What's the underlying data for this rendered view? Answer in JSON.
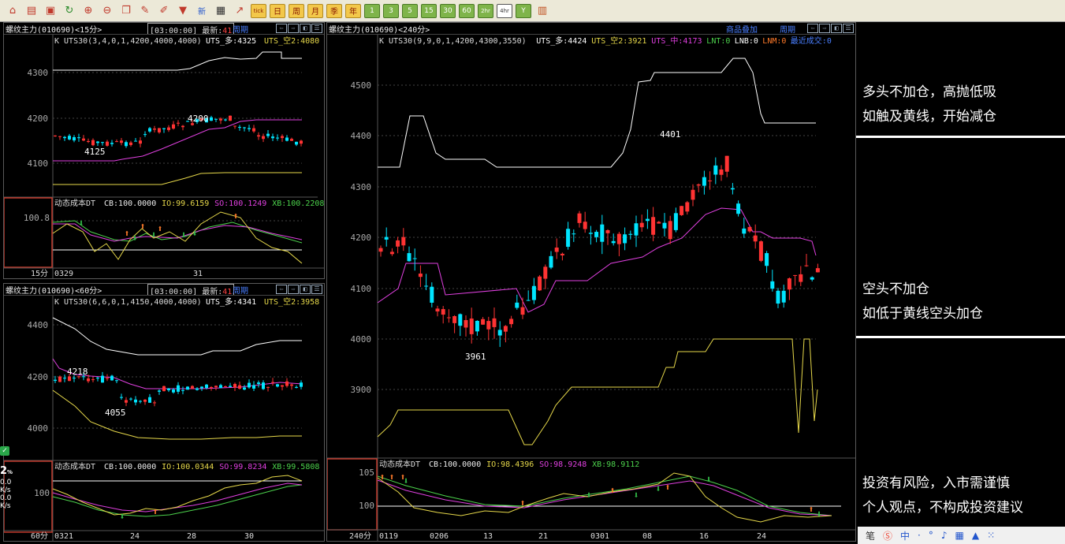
{
  "toolbar": {
    "icons": [
      "home-icon",
      "database-icon",
      "f10-icon",
      "refresh-icon",
      "zoom-in-icon",
      "zoom-out-icon",
      "window-icon",
      "pen-icon",
      "draw-icon",
      "filter-icon"
    ],
    "new_label": "新",
    "buttons": [
      "tick",
      "日",
      "周",
      "月",
      "季",
      "年",
      "1",
      "3",
      "5",
      "15",
      "30",
      "60",
      "2hr",
      "4hr",
      "Y"
    ],
    "selected": "4hr"
  },
  "panel_15": {
    "title": "螺纹主力(010690)<15分>",
    "time": "[03:00:00]",
    "latest_label": "最新:",
    "latest_value": "41",
    "period_label": "周期",
    "indicator": "K  UTS30(3,4,0,1,4200,4000,4000)",
    "ind_duo": "UTS_多:4325",
    "ind_kong": "UTS_空2:4080",
    "y_labels": [
      "4300",
      "4200",
      "4100"
    ],
    "hi_label": "4200",
    "lo_label": "4125",
    "sub_title": "动态成本DT",
    "sub_cb": "CB:100.0000",
    "sub_io": "IO:99.6159",
    "sub_so": "SO:100.1249",
    "sub_xb": "XB:100.2208",
    "sub_y": "100.8",
    "period": "15分",
    "x_labels": [
      "0329",
      "31"
    ]
  },
  "panel_60": {
    "title": "螺纹主力(010690)<60分>",
    "time": "[03:00:00]",
    "latest_label": "最新:",
    "latest_value": "41",
    "period_label": "周期",
    "indicator": "K  UTS30(6,6,0,1,4150,4000,4000)",
    "ind_duo": "UTS_多:4341",
    "ind_kong": "UTS_空2:3958",
    "y_labels": [
      "4400",
      "4200",
      "4000"
    ],
    "hi_label": "4218",
    "lo_label": "4055",
    "sub_title": "动态成本DT",
    "sub_cb": "CB:100.0000",
    "sub_io": "IO:100.0344",
    "sub_so": "SO:99.8234",
    "sub_xb": "XB:99.5808",
    "sub_y": "100",
    "period": "60分",
    "x_labels": [
      "0321",
      "24",
      "28",
      "30"
    ]
  },
  "panel_240": {
    "title": "螺纹主力(010690)<240分>",
    "overlay_label": "商品叠加",
    "period_label": "周期",
    "indicator": "K  UTS30(9,9,0,1,4200,4300,3550)",
    "ind_duo": "UTS_多:4424",
    "ind_kong": "UTS_空2:3921",
    "ind_zhong": "UTS_中:4173",
    "ind_lnt": "LNT:0",
    "ind_lnb": "LNB:0",
    "ind_lnm": "LNM:0",
    "ind_recent": "最近成交:0",
    "y_labels": [
      "4500",
      "4400",
      "4300",
      "4200",
      "4100",
      "4000",
      "3900"
    ],
    "hi_label": "4401",
    "lo_label": "3961",
    "sub_title": "动态成本DT",
    "sub_cb": "CB:100.0000",
    "sub_io": "IO:98.4396",
    "sub_so": "SO:98.9248",
    "sub_xb": "XB:98.9112",
    "sub_y": [
      "105",
      "100"
    ],
    "period": "240分",
    "x_labels": [
      "0119",
      "0206",
      "13",
      "21",
      "0301",
      "08",
      "16",
      "24"
    ]
  },
  "annotations": {
    "a1": "多头不加仓，高抛低吸",
    "a2": "如触及黄线，开始减仓",
    "a3": "空头不加仓",
    "a4": "如低于黄线空头加仓",
    "a5": "投资有风险，入市需谨慎",
    "a6": "个人观点，不构成投资建议"
  },
  "tray": {
    "pen": "笔",
    "ime": "中",
    "punct": "·",
    "dot": "°"
  },
  "left_edge": {
    "pct": "2",
    "pct_unit": "%",
    "v1": "0.0",
    "u1": "K/s",
    "v2": "0.0",
    "u2": "K/s"
  },
  "colors": {
    "up": "#ff3333",
    "down": "#00e5ff",
    "yellow": "#e6d84a",
    "magenta": "#e040e0",
    "white": "#ffffff",
    "green": "#4cd24c",
    "blue": "#4a7fff"
  }
}
